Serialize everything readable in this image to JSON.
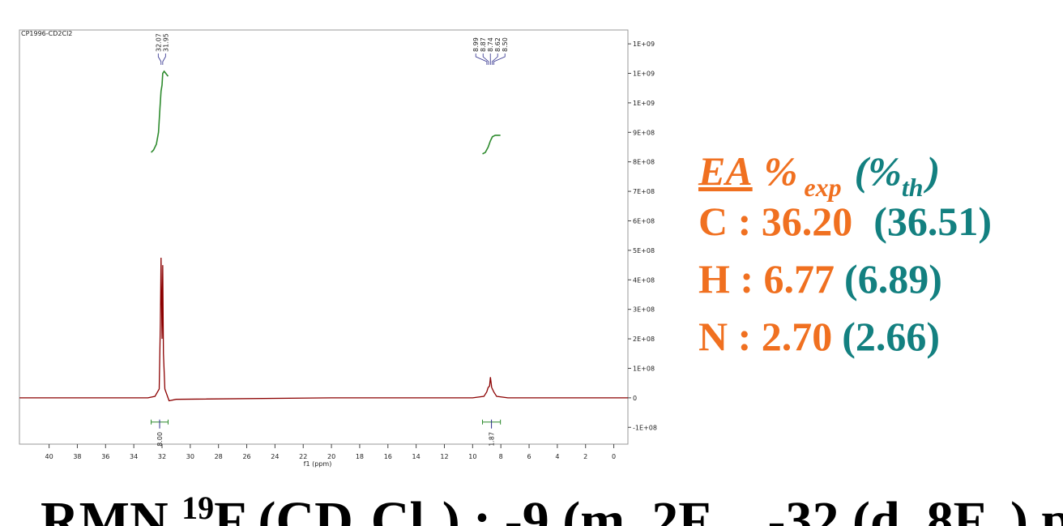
{
  "chart_data": {
    "type": "line",
    "title": "CP1996-CD2Cl2",
    "xlabel": "f1 (ppm)",
    "xlim": [
      42.1,
      -1.0
    ],
    "xticks": [
      40,
      38,
      36,
      34,
      32,
      30,
      28,
      26,
      24,
      22,
      20,
      18,
      16,
      14,
      12,
      10,
      8,
      6,
      4,
      2,
      0
    ],
    "ylim": [
      -157000000,
      1247000000
    ],
    "yticks": [
      {
        "value": -100000000,
        "label": "-1E+08"
      },
      0,
      {
        "value": 100000000,
        "label": "1E+08"
      },
      {
        "value": 200000000,
        "label": "2E+08"
      },
      {
        "value": 300000000,
        "label": "3E+08"
      },
      {
        "value": 400000000,
        "label": "4E+08"
      },
      {
        "value": 500000000,
        "label": "5E+08"
      },
      {
        "value": 600000000,
        "label": "6E+08"
      },
      {
        "value": 700000000,
        "label": "7E+08"
      },
      {
        "value": 800000000,
        "label": "8E+08"
      },
      {
        "value": 900000000,
        "label": "9E+08"
      },
      {
        "value": 1000000000,
        "label": "1E+09"
      },
      {
        "value": 1100000000,
        "label": "1E+09"
      },
      {
        "value": 1200000000,
        "label": "1E+09"
      }
    ],
    "series": [
      {
        "color": "#8b0000",
        "x": [
          42.1,
          33,
          32.5,
          32.2,
          32.12,
          32.07,
          32.0,
          31.95,
          31.9,
          31.8,
          31.5,
          31,
          20,
          10,
          9.2,
          9.0,
          8.9,
          8.8,
          8.74,
          8.65,
          8.5,
          8.3,
          7.5,
          -1.0
        ],
        "values": [
          0,
          0,
          5000000,
          30000000,
          250000000,
          475000000,
          200000000,
          450000000,
          150000000,
          30000000,
          -10000000,
          -5000000,
          0,
          0,
          5000000,
          20000000,
          35000000,
          40000000,
          70000000,
          35000000,
          20000000,
          5000000,
          0,
          0
        ]
      },
      {
        "color": "#2e8b2e",
        "x": [
          32.77,
          32.6,
          32.4,
          32.25,
          32.15,
          32.07,
          32.0,
          31.95,
          31.85,
          31.57
        ],
        "values": [
          832000000,
          840000000,
          860000000,
          900000000,
          980000000,
          1040000000,
          1060000000,
          1100000000,
          1107000000,
          1090000000
        ]
      },
      {
        "color": "#2e8b2e",
        "x": [
          9.3,
          9.1,
          8.9,
          8.75,
          8.6,
          8.4,
          8.03
        ],
        "values": [
          827000000,
          832000000,
          850000000,
          870000000,
          885000000,
          890000000,
          890000000
        ]
      }
    ],
    "peaks": [
      32.07,
      31.95,
      8.99,
      8.87,
      8.74,
      8.62,
      {
        "value": 8.5,
        "label": "8.50"
      }
    ],
    "integrals": {
      "values": [
        8,
        1.87
      ],
      "value_labels": [
        "8.00",
        "1.87"
      ],
      "ranges": [
        [
          32.77,
          31.57
        ],
        [
          9.3,
          8.03
        ]
      ]
    }
  },
  "analysis": {
    "ea": "EA",
    "percent": "%",
    "exp": "exp",
    "open": "(%",
    "th": "th",
    "close": ")",
    "rows": [
      {
        "measured": "C : 36.20",
        "theory": "(36.51)"
      },
      {
        "measured": "H : 6.77",
        "theory": "(6.89)"
      },
      {
        "measured": "N : 2.70",
        "theory": "(2.66)"
      }
    ]
  },
  "footer": {
    "rmn": "RMN ",
    "iso": "19",
    "nucleus": "F (CD",
    "cl": "Cl",
    "first": ") : -9 (m, 2F",
    "second": "-32 (d, 8F",
    "end": ") ppm"
  }
}
